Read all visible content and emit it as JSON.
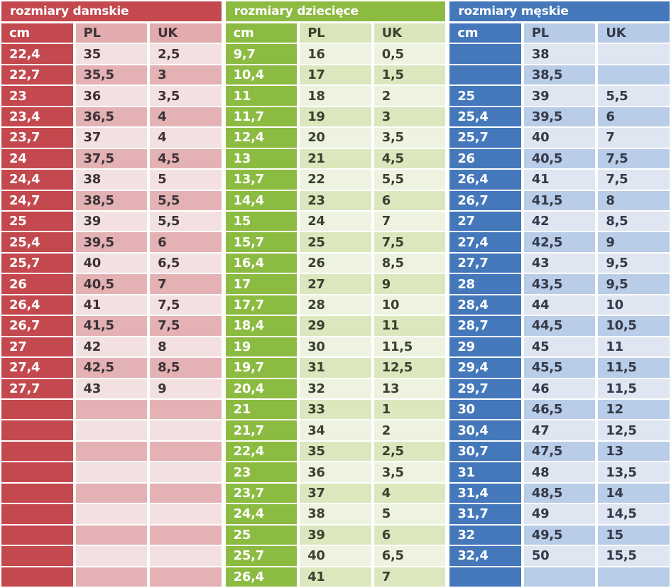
{
  "chart_data": [
    {
      "type": "table",
      "id": "damskie",
      "title": "rozmiary damskie",
      "columns": [
        "cm",
        "PL",
        "UK"
      ],
      "rows": [
        [
          "22,4",
          "35",
          "2,5"
        ],
        [
          "22,7",
          "35,5",
          "3"
        ],
        [
          "23",
          "36",
          "3,5"
        ],
        [
          "23,4",
          "36,5",
          "4"
        ],
        [
          "23,7",
          "37",
          "4"
        ],
        [
          "24",
          "37,5",
          "4,5"
        ],
        [
          "24,4",
          "38",
          "5"
        ],
        [
          "24,7",
          "38,5",
          "5,5"
        ],
        [
          "25",
          "39",
          "5,5"
        ],
        [
          "25,4",
          "39,5",
          "6"
        ],
        [
          "25,7",
          "40",
          "6,5"
        ],
        [
          "26",
          "40,5",
          "7"
        ],
        [
          "26,4",
          "41",
          "7,5"
        ],
        [
          "26,7",
          "41,5",
          "7,5"
        ],
        [
          "27",
          "42",
          "8"
        ],
        [
          "27,4",
          "42,5",
          "8,5"
        ],
        [
          "27,7",
          "43",
          "9"
        ],
        [
          "",
          "",
          ""
        ],
        [
          "",
          "",
          ""
        ],
        [
          "",
          "",
          ""
        ],
        [
          "",
          "",
          ""
        ],
        [
          "",
          "",
          ""
        ],
        [
          "",
          "",
          ""
        ],
        [
          "",
          "",
          ""
        ],
        [
          "",
          "",
          ""
        ],
        [
          "",
          "",
          ""
        ]
      ]
    },
    {
      "type": "table",
      "id": "dzieciece",
      "title": "rozmiary dziecięce",
      "columns": [
        "cm",
        "PL",
        "UK"
      ],
      "rows": [
        [
          "9,7",
          "16",
          "0,5"
        ],
        [
          "10,4",
          "17",
          "1,5"
        ],
        [
          "11",
          "18",
          "2"
        ],
        [
          "11,7",
          "19",
          "3"
        ],
        [
          "12,4",
          "20",
          "3,5"
        ],
        [
          "13",
          "21",
          "4,5"
        ],
        [
          "13,7",
          "22",
          "5,5"
        ],
        [
          "14,4",
          "23",
          "6"
        ],
        [
          "15",
          "24",
          "7"
        ],
        [
          "15,7",
          "25",
          "7,5"
        ],
        [
          "16,4",
          "26",
          "8,5"
        ],
        [
          "17",
          "27",
          "9"
        ],
        [
          "17,7",
          "28",
          "10"
        ],
        [
          "18,4",
          "29",
          "11"
        ],
        [
          "19",
          "30",
          "11,5"
        ],
        [
          "19,7",
          "31",
          "12,5"
        ],
        [
          "20,4",
          "32",
          "13"
        ],
        [
          "21",
          "33",
          "1"
        ],
        [
          "21,7",
          "34",
          "2"
        ],
        [
          "22,4",
          "35",
          "2,5"
        ],
        [
          "23",
          "36",
          "3,5"
        ],
        [
          "23,7",
          "37",
          "4"
        ],
        [
          "24,4",
          "38",
          "5"
        ],
        [
          "25",
          "39",
          "6"
        ],
        [
          "25,7",
          "40",
          "6,5"
        ],
        [
          "26,4",
          "41",
          "7"
        ]
      ]
    },
    {
      "type": "table",
      "id": "meskie",
      "title": "rozmiary męskie",
      "columns": [
        "cm",
        "PL",
        "UK"
      ],
      "rows": [
        [
          "",
          "38",
          ""
        ],
        [
          "",
          "38,5",
          ""
        ],
        [
          "25",
          "39",
          "5,5"
        ],
        [
          "25,4",
          "39,5",
          "6"
        ],
        [
          "25,7",
          "40",
          "7"
        ],
        [
          "26",
          "40,5",
          "7,5"
        ],
        [
          "26,4",
          "41",
          "7,5"
        ],
        [
          "26,7",
          "41,5",
          "8"
        ],
        [
          "27",
          "42",
          "8,5"
        ],
        [
          "27,4",
          "42,5",
          "9"
        ],
        [
          "27,7",
          "43",
          "9,5"
        ],
        [
          "28",
          "43,5",
          "9,5"
        ],
        [
          "28,4",
          "44",
          "10"
        ],
        [
          "28,7",
          "44,5",
          "10,5"
        ],
        [
          "29",
          "45",
          "11"
        ],
        [
          "29,4",
          "45,5",
          "11,5"
        ],
        [
          "29,7",
          "46",
          "11,5"
        ],
        [
          "30",
          "46,5",
          "12"
        ],
        [
          "30,4",
          "47",
          "12,5"
        ],
        [
          "30,7",
          "47,5",
          "13"
        ],
        [
          "31",
          "48",
          "13,5"
        ],
        [
          "31,4",
          "48,5",
          "14"
        ],
        [
          "31,7",
          "49",
          "14,5"
        ],
        [
          "32",
          "49,5",
          "15"
        ],
        [
          "32,4",
          "50",
          "15,5"
        ],
        [
          "",
          "",
          ""
        ]
      ]
    }
  ],
  "themes": [
    {
      "dark": "#c3494f",
      "head": "#e2abae",
      "light": "#f3e1e1",
      "medium": "#e4b2b4",
      "title_text": "#ffffff",
      "cm_text": "#ffffff",
      "val_text": "#3b3337"
    },
    {
      "dark": "#8cbb41",
      "head": "#d9e5ba",
      "light": "#eef3e1",
      "medium": "#dbe7bd",
      "title_text": "#ffffff",
      "cm_text": "#ffffff",
      "val_text": "#3b4030"
    },
    {
      "dark": "#4478bb",
      "head": "#b7cbe7",
      "light": "#dfe5f1",
      "medium": "#b9cce8",
      "title_text": "#ffffff",
      "cm_text": "#ffffff",
      "val_text": "#333947"
    }
  ]
}
